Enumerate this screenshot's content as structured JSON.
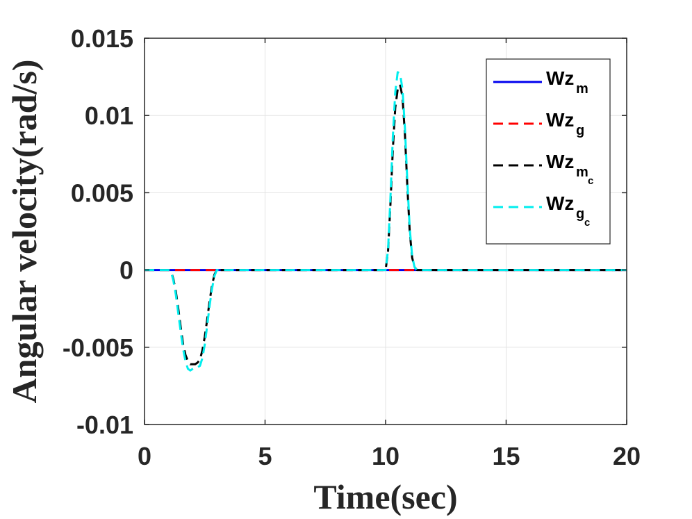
{
  "chart_data": {
    "type": "line",
    "xlabel": "Time(sec)",
    "ylabel": "Angular velocity(rad/s)",
    "xlim": [
      0,
      20
    ],
    "ylim": [
      -0.01,
      0.015
    ],
    "grid": true,
    "legend_position": "top-right",
    "x_ticks": [
      0,
      5,
      10,
      15,
      20
    ],
    "x_tick_labels": [
      "0",
      "5",
      "10",
      "15",
      "20"
    ],
    "y_ticks": [
      -0.01,
      -0.005,
      0,
      0.005,
      0.01,
      0.015
    ],
    "y_tick_labels": [
      "-0.01",
      "-0.005",
      "0",
      "0.005",
      "0.01",
      "0.015"
    ],
    "series": [
      {
        "name": "Wz_m",
        "legend_base": "Wz",
        "legend_sub": "m",
        "legend_subsub": "",
        "color": "#0000ee",
        "style": "solid",
        "x": [
          0,
          20
        ],
        "y": [
          0,
          0
        ]
      },
      {
        "name": "Wz_g",
        "legend_base": "Wz",
        "legend_sub": "g",
        "legend_subsub": "",
        "color": "#ff0000",
        "style": "dashed",
        "x": [
          0,
          20
        ],
        "y": [
          0,
          0
        ]
      },
      {
        "name": "Wz_m_c",
        "legend_base": "Wz",
        "legend_sub": "m",
        "legend_subsub": "c",
        "color": "#000000",
        "style": "dashed",
        "x": [
          0,
          1.0,
          1.1,
          1.2,
          1.3,
          1.4,
          1.5,
          1.6,
          1.7,
          1.8,
          1.9,
          2.0,
          2.1,
          2.2,
          2.3,
          2.4,
          2.5,
          2.6,
          2.7,
          2.8,
          2.9,
          3.0,
          3.1,
          3.2,
          10.0,
          10.1,
          10.2,
          10.3,
          10.4,
          10.5,
          10.6,
          10.7,
          10.8,
          10.9,
          11.0,
          11.1,
          11.2,
          11.3,
          11.4,
          20
        ],
        "y": [
          0,
          0,
          -0.0001,
          -0.0006,
          -0.0014,
          -0.0025,
          -0.0037,
          -0.0048,
          -0.0055,
          -0.0059,
          -0.0061,
          -0.0061,
          -0.0061,
          -0.006,
          -0.0058,
          -0.0052,
          -0.0043,
          -0.0032,
          -0.002,
          -0.001,
          -0.0003,
          0,
          0,
          0,
          0,
          0.0012,
          0.0042,
          0.0078,
          0.0105,
          0.0117,
          0.012,
          0.0112,
          0.0088,
          0.0055,
          0.0025,
          0.0008,
          0.0002,
          0,
          0,
          0
        ]
      },
      {
        "name": "Wz_g_c",
        "legend_base": "Wz",
        "legend_sub": "g",
        "legend_subsub": "c",
        "color": "#00eeee",
        "style": "dashed",
        "x": [
          0,
          1.0,
          1.1,
          1.2,
          1.3,
          1.4,
          1.5,
          1.6,
          1.7,
          1.8,
          1.9,
          2.0,
          2.1,
          2.2,
          2.3,
          2.4,
          2.5,
          2.6,
          2.7,
          2.8,
          2.9,
          3.0,
          3.1,
          3.2,
          10.0,
          10.1,
          10.2,
          10.3,
          10.4,
          10.5,
          10.6,
          10.7,
          10.8,
          10.9,
          11.0,
          11.1,
          11.2,
          11.3,
          11.4,
          20
        ],
        "y": [
          0,
          0,
          -0.0001,
          -0.0007,
          -0.0016,
          -0.0028,
          -0.004,
          -0.0051,
          -0.0059,
          -0.0064,
          -0.0065,
          -0.0064,
          -0.0063,
          -0.0063,
          -0.0062,
          -0.0057,
          -0.0048,
          -0.0036,
          -0.0023,
          -0.0012,
          -0.0004,
          0,
          0,
          0,
          0,
          0.0013,
          0.0046,
          0.0086,
          0.0115,
          0.0128,
          0.0127,
          0.0117,
          0.0092,
          0.0058,
          0.0027,
          0.0009,
          0.0002,
          0,
          0,
          0
        ]
      }
    ]
  }
}
